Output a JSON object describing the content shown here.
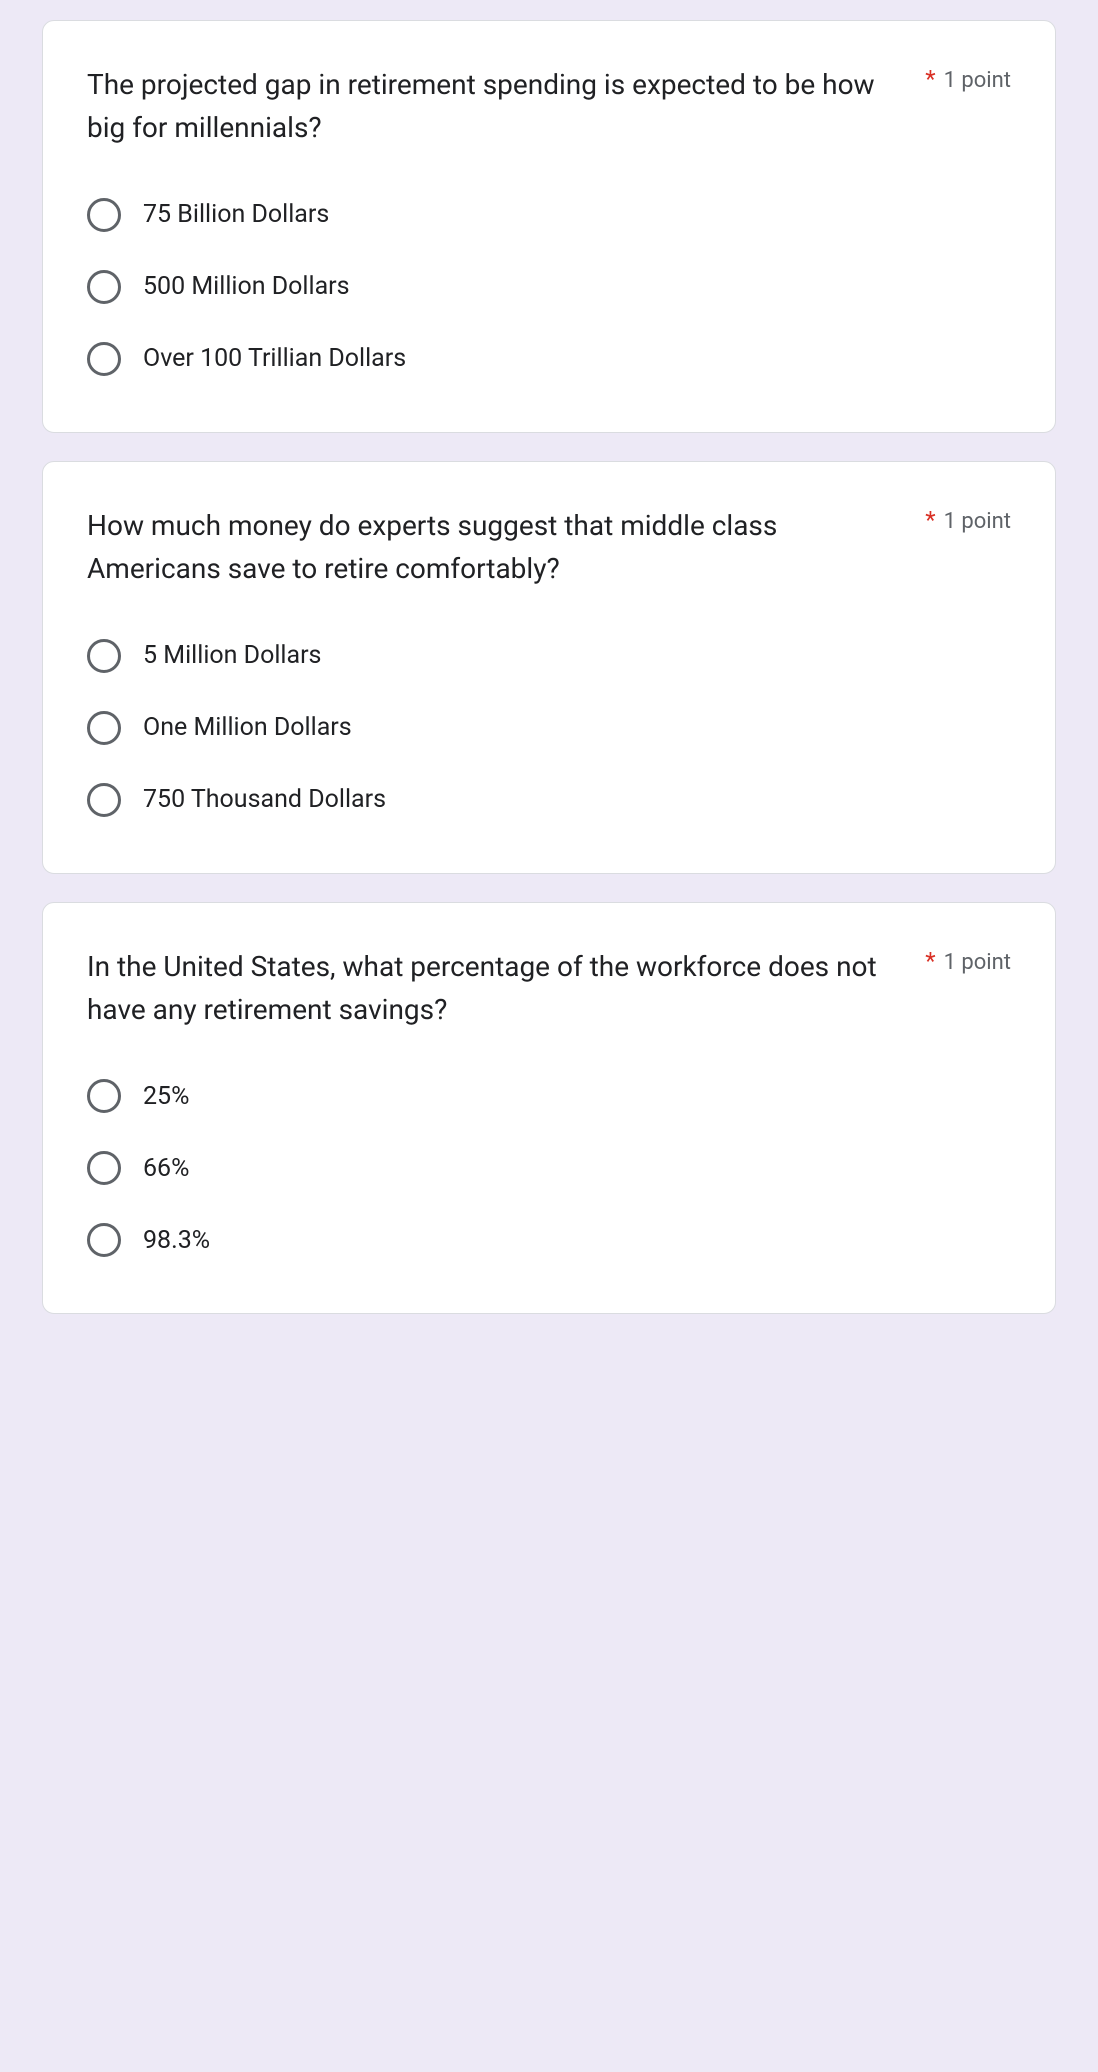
{
  "form": {
    "background_color": "#ede9f6",
    "card_bg": "#ffffff",
    "card_border": "#dadce0",
    "card_radius": 12,
    "text_color": "#202124",
    "muted_color": "#5f6368",
    "required_color": "#d93025",
    "question_fontsize": 28,
    "option_fontsize": 25,
    "points_fontsize": 22,
    "radio_border": "#5f6368",
    "radio_size": 34
  },
  "questions": [
    {
      "text": "The projected gap in retirement spending is expected to be how big for millennials?",
      "required": true,
      "points_label": "1 point",
      "options": [
        "75 Billion Dollars",
        "500 Million Dollars",
        "Over 100 Trillian Dollars"
      ]
    },
    {
      "text": "How much money do experts suggest that middle class Americans save to retire comfortably?",
      "required": true,
      "points_label": "1 point",
      "options": [
        "5 Million Dollars",
        "One Million Dollars",
        "750 Thousand Dollars"
      ]
    },
    {
      "text": "In the United States, what percentage of the workforce does not have any retirement savings?",
      "required": true,
      "points_label": "1 point",
      "options": [
        "25%",
        "66%",
        "98.3%"
      ]
    }
  ]
}
